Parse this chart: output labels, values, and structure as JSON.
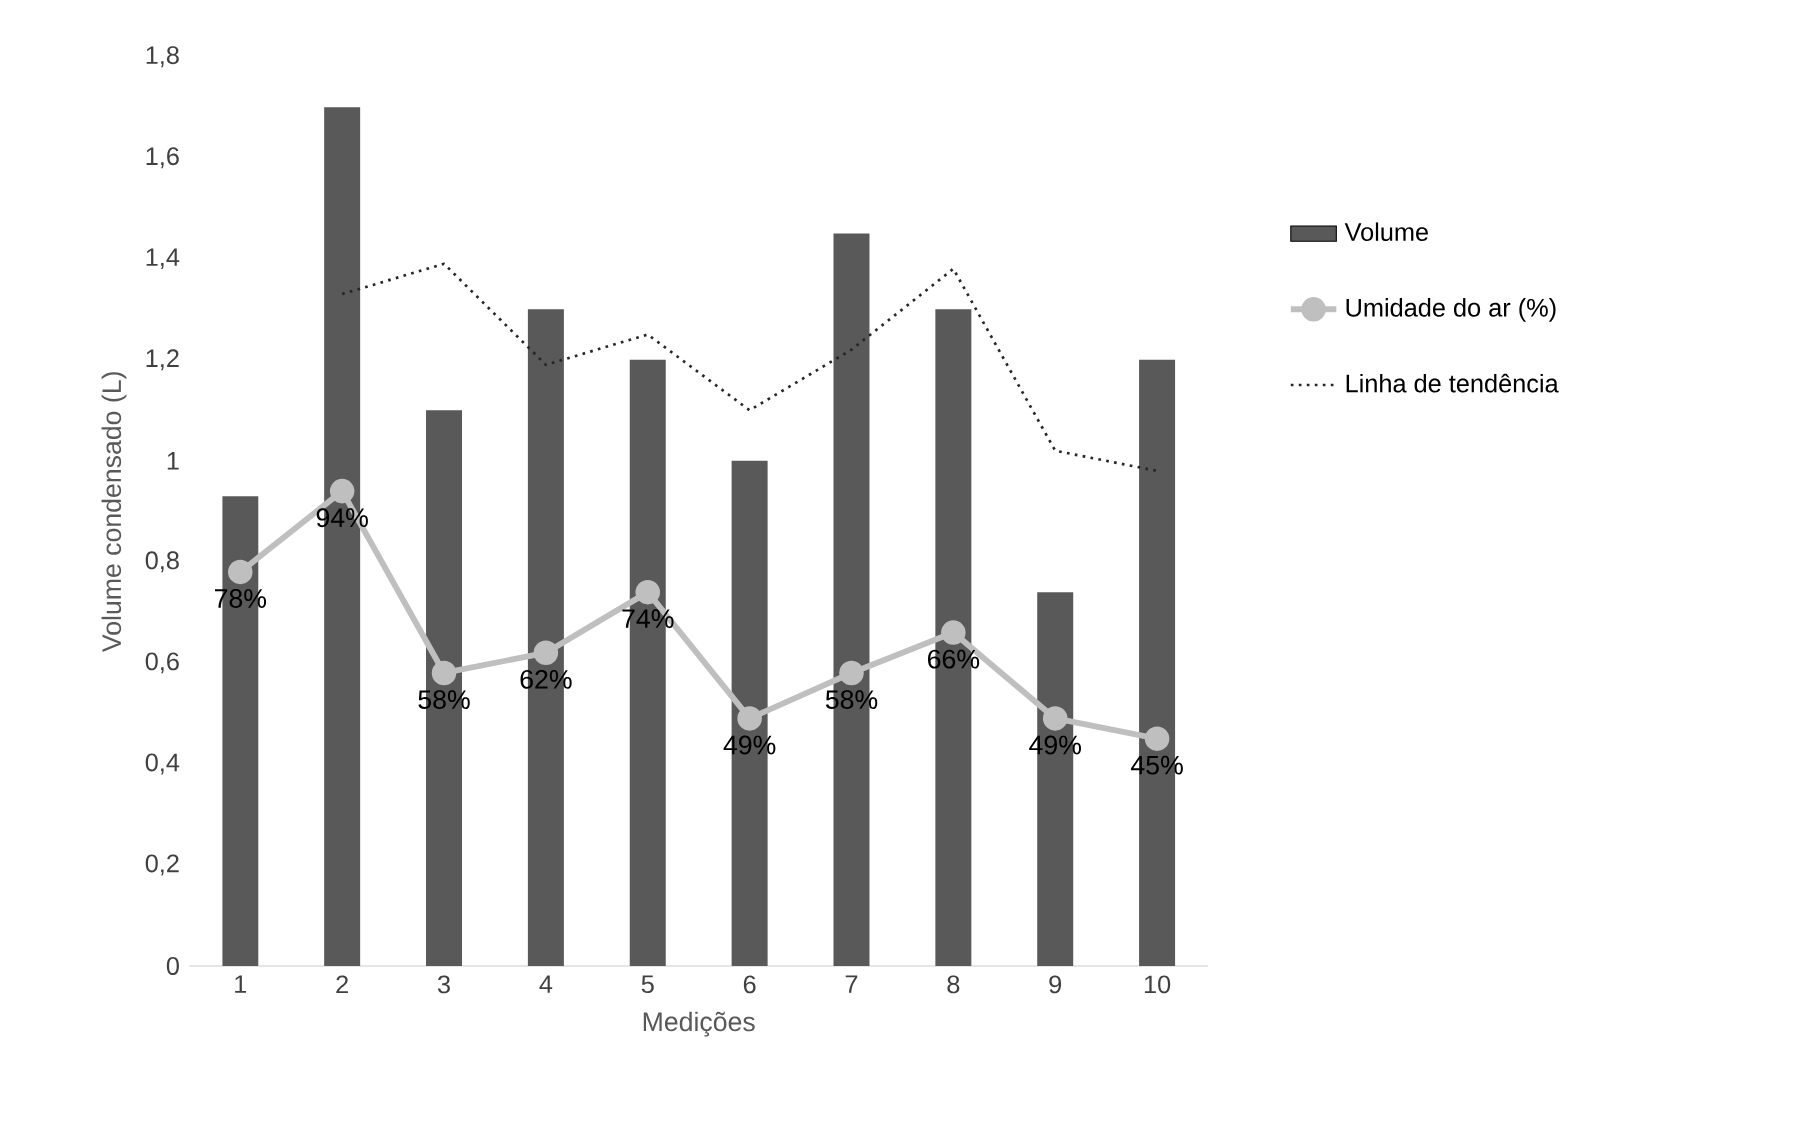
{
  "chart_data": {
    "type": "bar",
    "xlabel": "Medições",
    "ylabel": "Volume condensado (L)",
    "categories": [
      "1",
      "2",
      "3",
      "4",
      "5",
      "6",
      "7",
      "8",
      "9",
      "10"
    ],
    "series": [
      {
        "name": "Volume",
        "color": "#595959",
        "values": [
          0.93,
          1.7,
          1.1,
          1.3,
          1.2,
          1.0,
          1.45,
          1.3,
          0.74,
          1.2
        ]
      },
      {
        "name": "Umidade do ar (%)",
        "type": "line",
        "color": "#bfbfbf",
        "marker": "circle",
        "values": [
          0.78,
          0.94,
          0.58,
          0.62,
          0.74,
          0.49,
          0.58,
          0.66,
          0.49,
          0.45
        ],
        "value_labels": [
          "78%",
          "94%",
          "58%",
          "62%",
          "74%",
          "49%",
          "58%",
          "66%",
          "49%",
          "45%"
        ]
      },
      {
        "name": "Linha de tendência",
        "type": "line",
        "color": "#262626",
        "line_style": "dotted",
        "marker": "none",
        "values": [
          null,
          1.33,
          1.39,
          1.19,
          1.25,
          1.1,
          1.22,
          1.38,
          1.02,
          0.98
        ]
      }
    ],
    "ylim": [
      0,
      1.8
    ],
    "yticks": [
      0,
      {
        "value": 0.2,
        "label": "0,2"
      },
      {
        "value": 0.4,
        "label": "0,4"
      },
      {
        "value": 0.6,
        "label": "0,6"
      },
      {
        "value": 0.8,
        "label": "0,8"
      },
      1,
      {
        "value": 1.2,
        "label": "1,2"
      },
      {
        "value": 1.4,
        "label": "1,4"
      },
      {
        "value": 1.6,
        "label": "1,6"
      },
      {
        "value": 1.8,
        "label": "1,8"
      }
    ],
    "legend": "right",
    "grid": false
  }
}
